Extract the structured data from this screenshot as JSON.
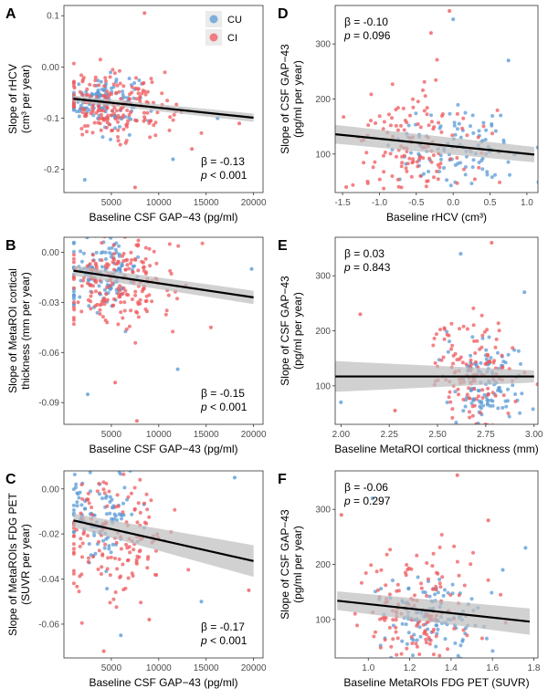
{
  "figure": {
    "colors": {
      "CU": "#5b9bd5",
      "CI": "#ef5a5e",
      "fit_line": "#000000",
      "ci_band": "#bdbdbd"
    }
  },
  "legend": {
    "items": [
      {
        "label": "CU",
        "color": "#5b9bd5"
      },
      {
        "label": "CI",
        "color": "#ef5a5e"
      }
    ],
    "placement": "top-right of panel A"
  },
  "chart_data": [
    {
      "id": "A",
      "letter": "A",
      "type": "scatter",
      "xlabel": "Baseline CSF GAP−43 (pg/ml)",
      "ylabel": [
        "Slope of rHCV",
        "(cm³ per year)"
      ],
      "xlim": [
        0,
        21000
      ],
      "ylim": [
        -0.245,
        0.12
      ],
      "xticks": [
        5000,
        10000,
        15000,
        20000
      ],
      "xtick_labels": [
        "5000",
        "10000",
        "15000",
        "20000"
      ],
      "yticks": [
        0.1,
        0.0,
        -0.1,
        -0.2
      ],
      "ytick_labels": [
        "0.1",
        "0.00",
        "-0.1",
        "-0.2"
      ],
      "fit": {
        "x": [
          1000,
          20000
        ],
        "y": [
          -0.062,
          -0.099
        ]
      },
      "ci": {
        "upper": [
          -0.056,
          -0.091
        ],
        "lower": [
          -0.068,
          -0.107
        ]
      },
      "stats": {
        "beta": "β = -0.13",
        "p_label": "p",
        "p_value": " < 0.001"
      },
      "series": [
        {
          "name": "CU",
          "x_center": 4000,
          "x_spread": 2000,
          "y_center": -0.065,
          "y_spread": 0.025,
          "n": 130
        },
        {
          "name": "CI",
          "x_center": 5500,
          "x_spread": 3000,
          "y_center": -0.075,
          "y_spread": 0.03,
          "n": 200
        }
      ],
      "outliers": [
        [
          8500,
          0.105
        ],
        [
          2200,
          -0.22
        ],
        [
          7500,
          -0.235
        ],
        [
          11500,
          -0.18
        ],
        [
          13500,
          -0.16
        ],
        [
          16200,
          -0.1
        ],
        [
          18500,
          -0.11
        ]
      ]
    },
    {
      "id": "B",
      "letter": "B",
      "type": "scatter",
      "xlabel": "Baseline CSF GAP−43 (pg/ml)",
      "ylabel": [
        "Slope of MetaROI cortical",
        "thickness (mm per year)"
      ],
      "xlim": [
        0,
        21000
      ],
      "ylim": [
        -0.103,
        0.009
      ],
      "xticks": [
        5000,
        10000,
        15000,
        20000
      ],
      "xtick_labels": [
        "5000",
        "10000",
        "15000",
        "20000"
      ],
      "yticks": [
        0.0,
        -0.03,
        -0.06,
        -0.09
      ],
      "ytick_labels": [
        "0.00",
        "-0.03",
        "-0.06",
        "-0.09"
      ],
      "fit": {
        "x": [
          1000,
          20000
        ],
        "y": [
          -0.011,
          -0.027
        ]
      },
      "ci": {
        "upper": [
          -0.008,
          -0.023
        ],
        "lower": [
          -0.014,
          -0.031
        ]
      },
      "stats": {
        "beta": "β = -0.15",
        "p_label": "p",
        "p_value": " < 0.001"
      },
      "series": [
        {
          "name": "CU",
          "x_center": 4000,
          "x_spread": 2000,
          "y_center": -0.012,
          "y_spread": 0.01,
          "n": 130
        },
        {
          "name": "CI",
          "x_center": 5500,
          "x_spread": 3000,
          "y_center": -0.018,
          "y_spread": 0.014,
          "n": 200
        }
      ],
      "outliers": [
        [
          7700,
          -0.101
        ],
        [
          2500,
          -0.085
        ],
        [
          5400,
          -0.078
        ],
        [
          12000,
          -0.07
        ],
        [
          15500,
          -0.045
        ],
        [
          19800,
          -0.01
        ]
      ]
    },
    {
      "id": "C",
      "letter": "C",
      "type": "scatter",
      "xlabel": "Baseline CSF GAP−43 (pg/ml)",
      "ylabel": [
        "Slope of MetaROIs FDG PET",
        "(SUVR per year)"
      ],
      "xlim": [
        0,
        21000
      ],
      "ylim": [
        -0.075,
        0.008
      ],
      "xticks": [
        5000,
        10000,
        15000,
        20000
      ],
      "xtick_labels": [
        "5000",
        "10000",
        "15000",
        "20000"
      ],
      "yticks": [
        0.0,
        -0.02,
        -0.04,
        -0.06
      ],
      "ytick_labels": [
        "0.00",
        "-0.02",
        "-0.04",
        "-0.06"
      ],
      "fit": {
        "x": [
          1000,
          20000
        ],
        "y": [
          -0.014,
          -0.032
        ]
      },
      "ci": {
        "upper": [
          -0.011,
          -0.025
        ],
        "lower": [
          -0.017,
          -0.039
        ]
      },
      "stats": {
        "beta": "β = -0.17",
        "p_label": "p",
        "p_value": " < 0.001"
      },
      "series": [
        {
          "name": "CU",
          "x_center": 4000,
          "x_spread": 2000,
          "y_center": -0.012,
          "y_spread": 0.01,
          "n": 110
        },
        {
          "name": "CI",
          "x_center": 5500,
          "x_spread": 3000,
          "y_center": -0.022,
          "y_spread": 0.014,
          "n": 150
        }
      ],
      "outliers": [
        [
          4200,
          -0.072
        ],
        [
          6000,
          -0.065
        ],
        [
          9000,
          -0.058
        ],
        [
          18000,
          0.005
        ],
        [
          19500,
          -0.045
        ],
        [
          14500,
          -0.05
        ]
      ]
    },
    {
      "id": "D",
      "letter": "D",
      "type": "scatter",
      "xlabel": "Baseline rHCV (cm³)",
      "ylabel": [
        "Slope of CSF GAP−43",
        "(pg/ml per year)"
      ],
      "xlim": [
        -1.6,
        1.15
      ],
      "ylim": [
        30,
        370
      ],
      "xticks": [
        -1.5,
        -1.0,
        -0.5,
        0.0,
        0.5,
        1.0
      ],
      "xtick_labels": [
        "-1.5",
        "-1.0",
        "-0.5",
        "0.0",
        "0.5",
        "1.0"
      ],
      "yticks": [
        100,
        200,
        300
      ],
      "ytick_labels": [
        "100",
        "200",
        "300"
      ],
      "fit": {
        "x": [
          -1.6,
          1.1
        ],
        "y": [
          136,
          99
        ]
      },
      "ci": {
        "upper": [
          153,
          113
        ],
        "lower": [
          119,
          85
        ]
      },
      "stats": {
        "beta": "β = -0.10",
        "p_label": "p",
        "p_value": " = 0.096"
      },
      "series": [
        {
          "name": "CU",
          "x_center": 0.1,
          "x_spread": 0.45,
          "y_center": 105,
          "y_spread": 40,
          "n": 110
        },
        {
          "name": "CI",
          "x_center": -0.5,
          "x_spread": 0.5,
          "y_center": 125,
          "y_spread": 55,
          "n": 140
        }
      ],
      "outliers": [
        [
          -0.05,
          360
        ],
        [
          0.0,
          345
        ],
        [
          -0.3,
          320
        ],
        [
          0.75,
          270
        ],
        [
          -1.45,
          40
        ]
      ]
    },
    {
      "id": "E",
      "letter": "E",
      "type": "scatter",
      "xlabel": "Baseline MetaROI cortical thickness (mm)",
      "ylabel": [
        "Slope of CSF GAP−43",
        "(pg/ml per year)"
      ],
      "xlim": [
        1.97,
        3.02
      ],
      "ylim": [
        30,
        370
      ],
      "xticks": [
        2.0,
        2.25,
        2.5,
        2.75,
        3.0
      ],
      "xtick_labels": [
        "2.00",
        "2.25",
        "2.50",
        "2.75",
        "3.00"
      ],
      "yticks": [
        100,
        200,
        300
      ],
      "ytick_labels": [
        "100",
        "200",
        "300"
      ],
      "fit": {
        "x": [
          1.97,
          3.0
        ],
        "y": [
          117,
          117
        ]
      },
      "ci": {
        "upper": [
          145,
          128
        ],
        "lower": [
          89,
          106
        ]
      },
      "stats": {
        "beta": "β = 0.03",
        "p_label": "p",
        "p_value": " = 0.843"
      },
      "series": [
        {
          "name": "CU",
          "x_center": 2.75,
          "x_spread": 0.09,
          "y_center": 105,
          "y_spread": 40,
          "n": 120
        },
        {
          "name": "CI",
          "x_center": 2.68,
          "x_spread": 0.1,
          "y_center": 125,
          "y_spread": 55,
          "n": 140
        }
      ],
      "outliers": [
        [
          2.78,
          360
        ],
        [
          2.62,
          340
        ],
        [
          2.1,
          230
        ],
        [
          2.0,
          70
        ],
        [
          2.28,
          55
        ],
        [
          2.95,
          270
        ]
      ]
    },
    {
      "id": "F",
      "letter": "F",
      "type": "scatter",
      "xlabel": "Baseline MetaROIs FDG PET (SUVR)",
      "ylabel": [
        "Slope of CSF GAP−43",
        "(pg/ml per year)"
      ],
      "xlim": [
        0.84,
        1.82
      ],
      "ylim": [
        30,
        370
      ],
      "xticks": [
        1.0,
        1.2,
        1.4,
        1.6,
        1.8
      ],
      "xtick_labels": [
        "1.0",
        "1.2",
        "1.4",
        "1.6",
        "1.8"
      ],
      "yticks": [
        100,
        200,
        300
      ],
      "ytick_labels": [
        "100",
        "200",
        "300"
      ],
      "fit": {
        "x": [
          0.85,
          1.78
        ],
        "y": [
          134,
          96
        ]
      },
      "ci": {
        "upper": [
          151,
          120
        ],
        "lower": [
          117,
          72
        ]
      },
      "stats": {
        "beta": "β = -0.06",
        "p_label": "p",
        "p_value": " = 0.297"
      },
      "series": [
        {
          "name": "CU",
          "x_center": 1.32,
          "x_spread": 0.12,
          "y_center": 105,
          "y_spread": 40,
          "n": 120
        },
        {
          "name": "CI",
          "x_center": 1.22,
          "x_spread": 0.14,
          "y_center": 125,
          "y_spread": 55,
          "n": 140
        }
      ],
      "outliers": [
        [
          1.43,
          362
        ],
        [
          1.02,
          320
        ],
        [
          0.87,
          290
        ],
        [
          1.76,
          230
        ],
        [
          1.58,
          280
        ],
        [
          1.65,
          190
        ]
      ]
    }
  ]
}
